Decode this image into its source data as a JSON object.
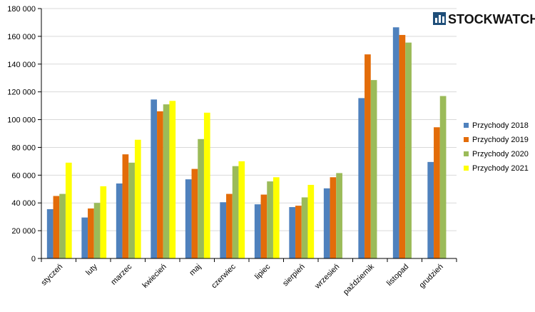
{
  "logo": {
    "text": "STOCKWATCH",
    "icon": "stockwatch-logo-icon"
  },
  "colors": {
    "Przychody 2018": "#4F81BD",
    "Przychody 2019": "#E36C09",
    "Przychody 2020": "#9BBB59",
    "Przychody 2021": "#FFFF00",
    "grid": "#d9d9d9",
    "axis": "#000000"
  },
  "chart_data": {
    "type": "bar",
    "title": "",
    "xlabel": "",
    "ylabel": "",
    "categories": [
      "styczeń",
      "luty",
      "marzec",
      "kwiecień",
      "maj",
      "czerwiec",
      "lipiec",
      "sierpień",
      "wrzesień",
      "październik",
      "listopad",
      "grudzień"
    ],
    "series": [
      {
        "name": "Przychody 2018",
        "values": [
          35500,
          29500,
          54000,
          114500,
          57000,
          40500,
          39000,
          37000,
          50500,
          115500,
          166500,
          69500
        ]
      },
      {
        "name": "Przychody 2019",
        "values": [
          45000,
          36000,
          75000,
          106000,
          64500,
          46500,
          46000,
          38000,
          58500,
          147000,
          161000,
          94500
        ]
      },
      {
        "name": "Przychody 2020",
        "values": [
          46500,
          40000,
          69000,
          111000,
          86000,
          66500,
          55500,
          44000,
          61500,
          128500,
          155500,
          117000
        ]
      },
      {
        "name": "Przychody 2021",
        "values": [
          69000,
          52000,
          85500,
          113500,
          105000,
          70000,
          58500,
          53000,
          null,
          null,
          null,
          null
        ]
      }
    ],
    "ylim": [
      0,
      180000
    ],
    "yticks": [
      0,
      20000,
      40000,
      60000,
      80000,
      100000,
      120000,
      140000,
      160000,
      180000
    ],
    "ytick_labels": [
      "0",
      "20 000",
      "40 000",
      "60 000",
      "80 000",
      "100 000",
      "120 000",
      "140 000",
      "160 000",
      "180 000"
    ],
    "grid": true,
    "legend_position": "right"
  }
}
